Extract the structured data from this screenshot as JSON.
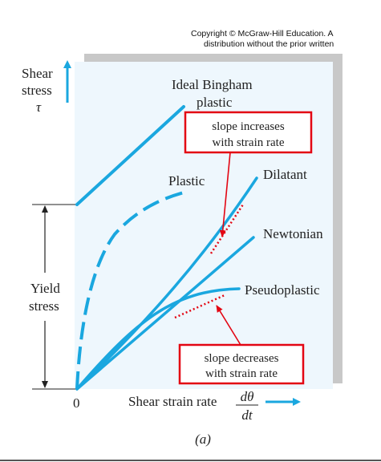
{
  "copyright": {
    "line1": "Copyright © McGraw-Hill Education.  A",
    "line2": "distribution without the prior written"
  },
  "y_axis": {
    "label_line1": "Shear",
    "label_line2": "stress",
    "symbol": "τ",
    "yield_line1": "Yield",
    "yield_line2": "stress"
  },
  "x_axis": {
    "origin_label": "0",
    "label": "Shear strain rate",
    "fraction_numerator": "dθ",
    "fraction_denominator": "dt"
  },
  "curves": {
    "bingham_line1": "Ideal Bingham",
    "bingham_line2": "plastic",
    "plastic": "Plastic",
    "dilatant": "Dilatant",
    "newtonian": "Newtonian",
    "pseudoplastic": "Pseudoplastic"
  },
  "callouts": {
    "increase_line1": "slope increases",
    "increase_line2": "with strain rate",
    "decrease_line1": "slope decreases",
    "decrease_line2": "with strain rate"
  },
  "caption": "(a)",
  "colors": {
    "curve": "#1aa7df",
    "panel": "#eef7fd",
    "shadow": "#c8c8c8",
    "callout": "#e30613",
    "axis": "#222222"
  }
}
